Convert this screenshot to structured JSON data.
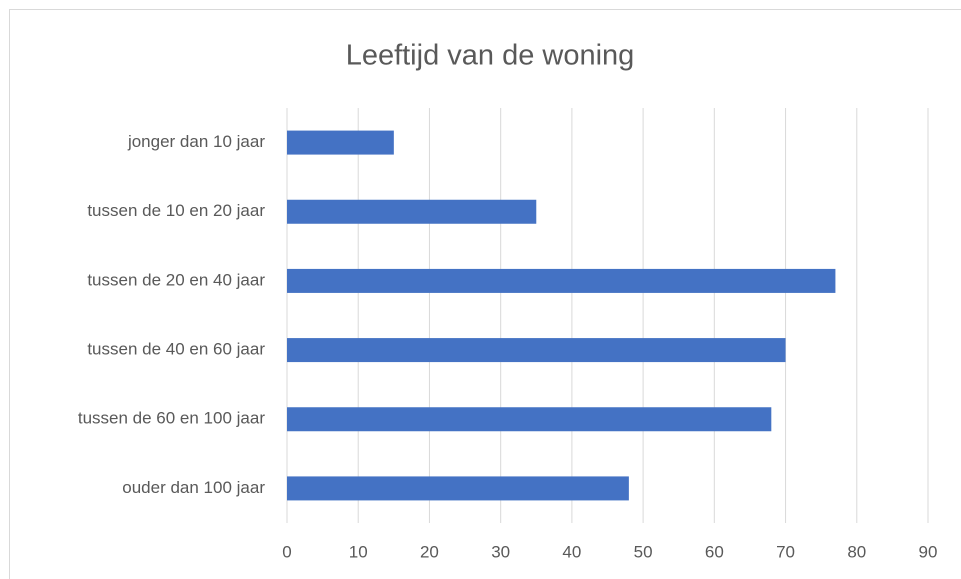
{
  "chart_data": {
    "type": "bar",
    "orientation": "horizontal",
    "title": "Leeftijd van de woning",
    "categories": [
      "jonger dan 10 jaar",
      "tussen de 10 en 20 jaar",
      "tussen de 20 en 40 jaar",
      "tussen de 40 en 60 jaar",
      "tussen de 60 en 100 jaar",
      "ouder dan 100 jaar"
    ],
    "values": [
      15,
      35,
      77,
      70,
      68,
      48
    ],
    "color": "#4472c4",
    "xlim": [
      0,
      90
    ],
    "xticks": [
      0,
      10,
      20,
      30,
      40,
      50,
      60,
      70,
      80,
      90
    ],
    "grid": true
  }
}
